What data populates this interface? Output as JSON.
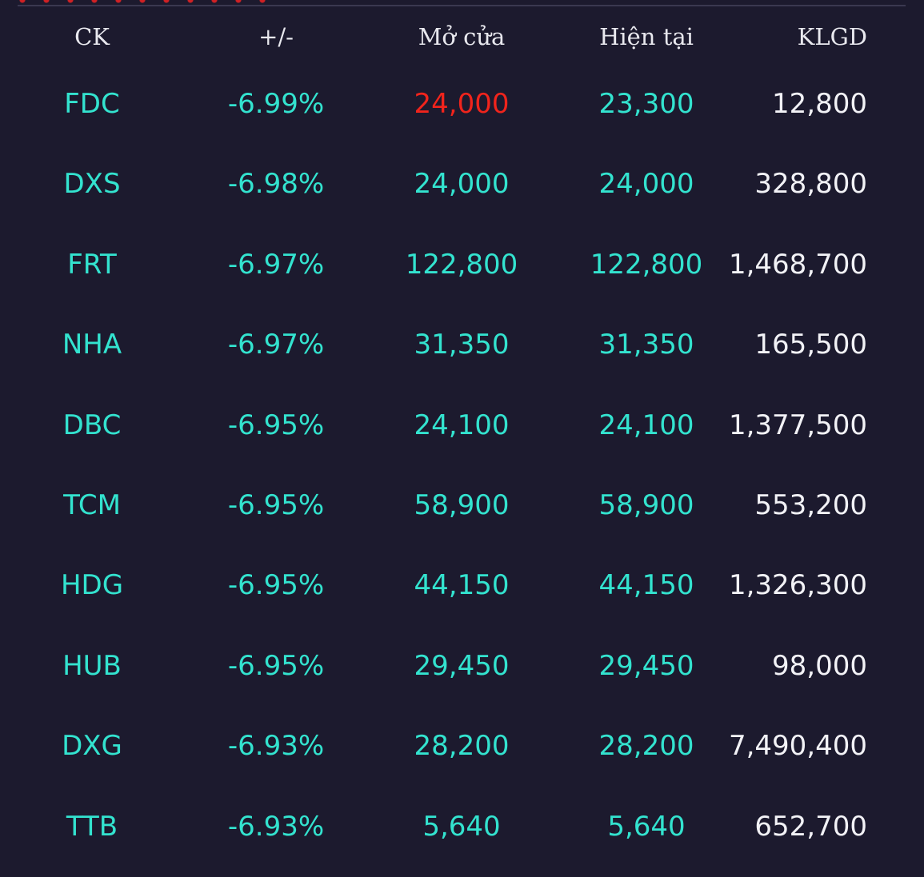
{
  "colors": {
    "background": "#1c1a2e",
    "teal": "#33e3cf",
    "red": "#f0241c",
    "white": "#f2f2f6",
    "header_text": "#e8e8ee"
  },
  "table": {
    "headers": {
      "ck": "CK",
      "change": "+/-",
      "open": "Mở cửa",
      "current": "Hiện tại",
      "volume": "KLGD"
    },
    "rows": [
      {
        "ck": "FDC",
        "change": "-6.99%",
        "open": "24,000",
        "open_color": "red",
        "current": "23,300",
        "volume": "12,800"
      },
      {
        "ck": "DXS",
        "change": "-6.98%",
        "open": "24,000",
        "open_color": "teal",
        "current": "24,000",
        "volume": "328,800"
      },
      {
        "ck": "FRT",
        "change": "-6.97%",
        "open": "122,800",
        "open_color": "teal",
        "current": "122,800",
        "volume": "1,468,700"
      },
      {
        "ck": "NHA",
        "change": "-6.97%",
        "open": "31,350",
        "open_color": "teal",
        "current": "31,350",
        "volume": "165,500"
      },
      {
        "ck": "DBC",
        "change": "-6.95%",
        "open": "24,100",
        "open_color": "teal",
        "current": "24,100",
        "volume": "1,377,500"
      },
      {
        "ck": "TCM",
        "change": "-6.95%",
        "open": "58,900",
        "open_color": "teal",
        "current": "58,900",
        "volume": "553,200"
      },
      {
        "ck": "HDG",
        "change": "-6.95%",
        "open": "44,150",
        "open_color": "teal",
        "current": "44,150",
        "volume": "1,326,300"
      },
      {
        "ck": "HUB",
        "change": "-6.95%",
        "open": "29,450",
        "open_color": "teal",
        "current": "29,450",
        "volume": "98,000"
      },
      {
        "ck": "DXG",
        "change": "-6.93%",
        "open": "28,200",
        "open_color": "teal",
        "current": "28,200",
        "volume": "7,490,400"
      },
      {
        "ck": "TTB",
        "change": "-6.93%",
        "open": "5,640",
        "open_color": "teal",
        "current": "5,640",
        "volume": "652,700"
      }
    ]
  }
}
